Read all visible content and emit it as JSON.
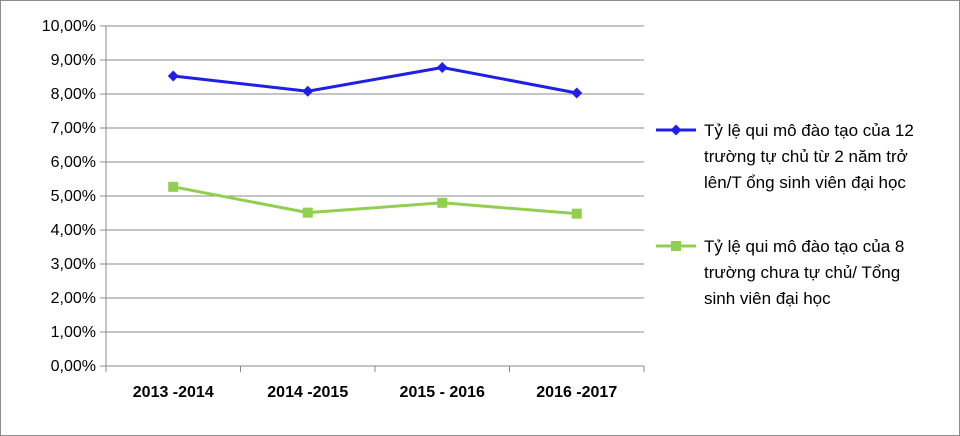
{
  "chart_data": {
    "type": "line",
    "categories": [
      "2013 -2014",
      "2014 -2015",
      "2015 - 2016",
      "2016 -2017"
    ],
    "ylim": [
      0,
      0.1
    ],
    "y_ticks": [
      {
        "value": 0.0,
        "label": "0,00%"
      },
      {
        "value": 0.01,
        "label": "1,00%"
      },
      {
        "value": 0.02,
        "label": "2,00%"
      },
      {
        "value": 0.03,
        "label": "3,00%"
      },
      {
        "value": 0.04,
        "label": "4,00%"
      },
      {
        "value": 0.05,
        "label": "5,00%"
      },
      {
        "value": 0.06,
        "label": "6,00%"
      },
      {
        "value": 0.07,
        "label": "7,00%"
      },
      {
        "value": 0.08,
        "label": "8,00%"
      },
      {
        "value": 0.09,
        "label": "9,00%"
      },
      {
        "value": 0.1,
        "label": "10,00%"
      }
    ],
    "grid": true,
    "legend_position": "right",
    "series": [
      {
        "name": "Tỷ lệ qui mô đào tạo của 12 trường tự chủ từ 2 năm trở lên/T ổng sinh viên đại học",
        "name_lines": [
          "Tỷ lệ qui mô đào tạo của 12",
          "trường tự chủ từ 2 năm trở",
          "lên/T ổng sinh viên đại học"
        ],
        "values": [
          0.0853,
          0.0808,
          0.0878,
          0.0803
        ],
        "color": "#1f1fe6",
        "marker": "diamond"
      },
      {
        "name": "Tỷ lệ qui mô đào tạo của 8 trường chưa tự chủ/ Tổng sinh viên đại học",
        "name_lines": [
          "Tỷ lệ qui mô đào tạo của 8",
          "trường chưa tự chủ/ Tổng",
          "sinh viên đại học"
        ],
        "values": [
          0.0527,
          0.0451,
          0.048,
          0.0448
        ],
        "color": "#92cf50",
        "marker": "square"
      }
    ]
  }
}
